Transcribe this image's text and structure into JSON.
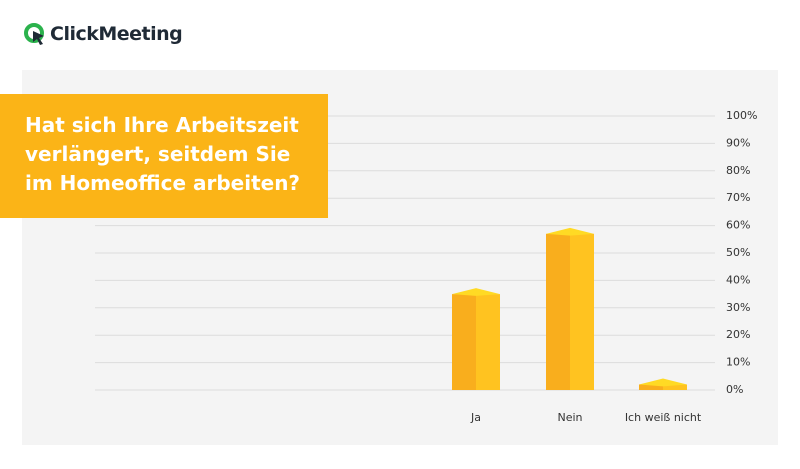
{
  "logo_text": "ClickMeeting",
  "chart_data": {
    "type": "bar3d",
    "title": "Hat sich Ihre Arbeitszeit verlängert, seitdem Sie im Homeoffice arbeiten?",
    "categories": [
      "Ja",
      "Nein",
      "Ich weiß nicht"
    ],
    "values": [
      35,
      57,
      2
    ],
    "color": "#f9ae1d",
    "ylim": [
      0,
      100
    ],
    "yticks": [
      {
        "value": 0,
        "label": "0%"
      },
      {
        "value": 10,
        "label": "10%"
      },
      {
        "value": 20,
        "label": "20%"
      },
      {
        "value": 30,
        "label": "30%"
      },
      {
        "value": 40,
        "label": "40%"
      },
      {
        "value": 50,
        "label": "50%"
      },
      {
        "value": 60,
        "label": "60%"
      },
      {
        "value": 70,
        "label": "70%"
      },
      {
        "value": 80,
        "label": "80%"
      },
      {
        "value": 90,
        "label": "90%"
      },
      {
        "value": 100,
        "label": "100%"
      }
    ],
    "grid": true
  }
}
